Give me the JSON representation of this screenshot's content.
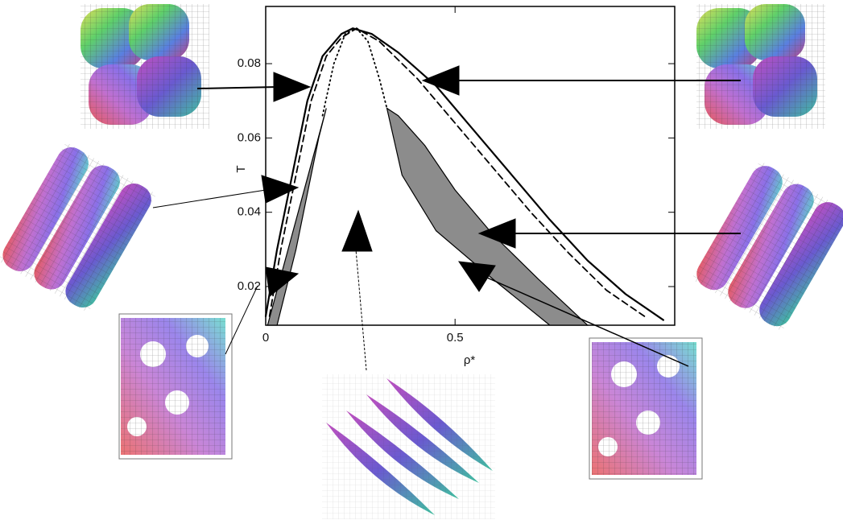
{
  "chart_data": {
    "type": "line",
    "x_label": "ρ*",
    "y_label": "T",
    "xlim": [
      0,
      1.08
    ],
    "ylim": [
      0.0096,
      0.0954
    ],
    "xticks": [
      0,
      0.5
    ],
    "yticks": [
      0.02,
      0.04,
      0.06,
      0.08
    ],
    "series": [
      {
        "style": "solid",
        "color": "#000000",
        "x": [
          0.0,
          0.03,
          0.07,
          0.11,
          0.15,
          0.2,
          0.23,
          0.28,
          0.35,
          0.45,
          0.55,
          0.65,
          0.75,
          0.85,
          0.95,
          1.05
        ],
        "values": [
          0.012,
          0.03,
          0.05,
          0.07,
          0.082,
          0.088,
          0.0895,
          0.088,
          0.083,
          0.074,
          0.062,
          0.05,
          0.038,
          0.027,
          0.018,
          0.011
        ]
      },
      {
        "style": "dashed",
        "color": "#000000",
        "x": [
          0.01,
          0.04,
          0.08,
          0.12,
          0.16,
          0.2,
          0.24,
          0.3,
          0.4,
          0.5,
          0.6,
          0.7,
          0.8,
          0.9,
          1.0
        ],
        "values": [
          0.012,
          0.03,
          0.05,
          0.07,
          0.082,
          0.087,
          0.0895,
          0.086,
          0.076,
          0.064,
          0.052,
          0.04,
          0.029,
          0.019,
          0.012
        ]
      },
      {
        "style": "dotted",
        "color": "#000000",
        "x": [
          0.15,
          0.18,
          0.21,
          0.24,
          0.27,
          0.3,
          0.32
        ],
        "values": [
          0.066,
          0.08,
          0.088,
          0.0895,
          0.086,
          0.076,
          0.068
        ]
      }
    ],
    "regions": [
      {
        "color": "#8c8c8c",
        "x": [
          0.005,
          0.16,
          0.14,
          0.08,
          0.03
        ],
        "values": [
          0.0096,
          0.068,
          0.06,
          0.03,
          0.0096
        ]
      },
      {
        "color": "#8c8c8c",
        "x": [
          0.32,
          0.36,
          0.45,
          0.6,
          0.75,
          0.85,
          0.72,
          0.6,
          0.5,
          0.42,
          0.35
        ],
        "values": [
          0.068,
          0.05,
          0.035,
          0.022,
          0.0096,
          0.0096,
          0.022,
          0.034,
          0.046,
          0.058,
          0.066
        ]
      }
    ]
  }
}
